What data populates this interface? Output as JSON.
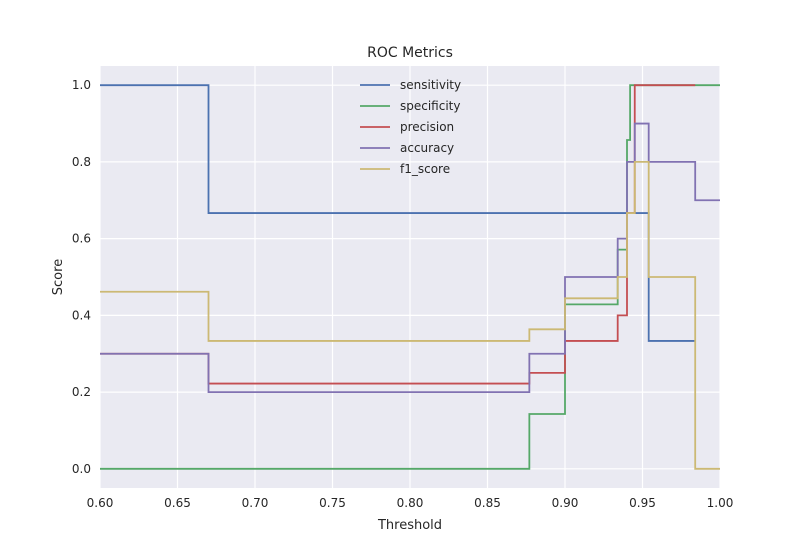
{
  "chart_data": {
    "type": "line",
    "step": "post",
    "title": "ROC Metrics",
    "xlabel": "Threshold",
    "ylabel": "Score",
    "xlim": [
      0.6,
      1.0
    ],
    "ylim": [
      -0.05,
      1.05
    ],
    "xticks": [
      "0.60",
      "0.65",
      "0.70",
      "0.75",
      "0.80",
      "0.85",
      "0.90",
      "0.95",
      "1.00"
    ],
    "yticks": [
      "0.0",
      "0.2",
      "0.4",
      "0.6",
      "0.8",
      "1.0"
    ],
    "grid": true,
    "legend_position": "top-center",
    "background": "#eaeaf2",
    "series": [
      {
        "name": "sensitivity",
        "color": "#4c72b0",
        "x": [
          0.6,
          0.67,
          0.954,
          0.984
        ],
        "y": [
          1.0,
          0.6667,
          0.3333,
          0.3333
        ]
      },
      {
        "name": "specificity",
        "color": "#55a868",
        "x": [
          0.6,
          0.877,
          0.9,
          0.934,
          0.94,
          0.942,
          0.984,
          1.0
        ],
        "y": [
          0.0,
          0.1429,
          0.4286,
          0.5714,
          0.8571,
          1.0,
          1.0,
          1.0
        ]
      },
      {
        "name": "precision",
        "color": "#c44e52",
        "x": [
          0.6,
          0.67,
          0.877,
          0.9,
          0.934,
          0.94,
          0.945,
          0.984
        ],
        "y": [
          0.3,
          0.2222,
          0.25,
          0.3333,
          0.4,
          0.6667,
          1.0,
          1.0
        ]
      },
      {
        "name": "accuracy",
        "color": "#8172b2",
        "x": [
          0.6,
          0.67,
          0.877,
          0.9,
          0.934,
          0.94,
          0.945,
          0.954,
          0.984,
          1.0
        ],
        "y": [
          0.3,
          0.2,
          0.3,
          0.5,
          0.6,
          0.8,
          0.9,
          0.8,
          0.7,
          0.7
        ]
      },
      {
        "name": "f1_score",
        "color": "#ccb974",
        "x": [
          0.6,
          0.67,
          0.877,
          0.9,
          0.934,
          0.94,
          0.945,
          0.954,
          0.984,
          1.0
        ],
        "y": [
          0.4615,
          0.3333,
          0.3636,
          0.4444,
          0.5,
          0.6667,
          0.8,
          0.5,
          0.0,
          0.0
        ]
      }
    ]
  }
}
